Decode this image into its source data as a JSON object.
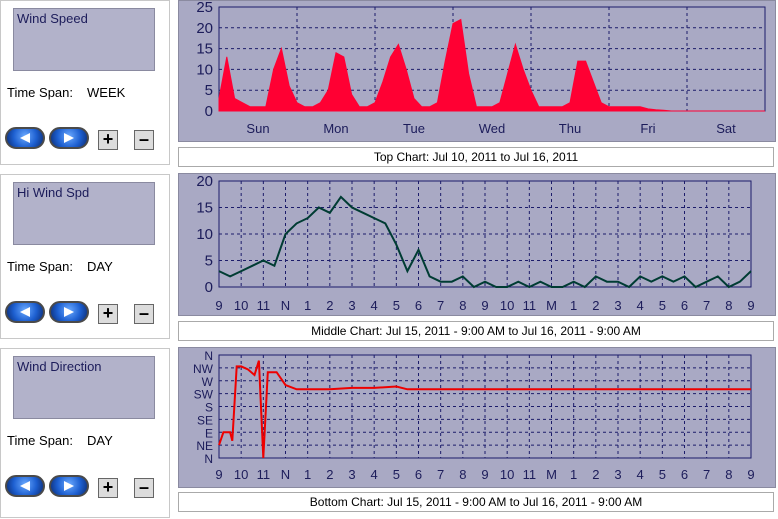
{
  "panels": [
    {
      "selector": "Wind Speed",
      "span_label": "Time Span:",
      "span_value": "WEEK"
    },
    {
      "selector": "Hi Wind Spd",
      "span_label": "Time Span:",
      "span_value": "DAY"
    },
    {
      "selector": "Wind Direction",
      "span_label": "Time Span:",
      "span_value": "DAY"
    }
  ],
  "buttons": {
    "plus": "+",
    "minus": "–"
  },
  "icons": {
    "prev": "prev-arrow-icon",
    "next": "next-arrow-icon"
  },
  "colors": {
    "plot_bg": "#a9a9c4",
    "grid": "#1c1c6a",
    "top_series": "#ff0033",
    "mid_series": "#003c33",
    "bottom_series": "#ee0000"
  },
  "captions": {
    "top": "Top Chart:  Jul 10, 2011  to  Jul 16, 2011",
    "middle": "Middle Chart:  Jul 15, 2011 - 9:00 AM  to  Jul 16, 2011 - 9:00 AM",
    "bottom": "Bottom Chart:  Jul 15, 2011 - 9:00 AM  to  Jul 16, 2011 - 9:00 AM"
  },
  "chart_data": [
    {
      "type": "area",
      "title": "",
      "ylim": [
        0,
        25
      ],
      "yticks": [
        "0",
        "5",
        "10",
        "15",
        "20",
        "25"
      ],
      "xticks": [
        "Sun",
        "Mon",
        "Tue",
        "Wed",
        "Thu",
        "Fri",
        "Sat"
      ],
      "xlim": [
        0,
        7
      ],
      "grid": true,
      "series": [
        {
          "x": [
            0,
            0.1,
            0.2,
            0.3,
            0.4,
            0.5,
            0.6,
            0.7,
            0.8,
            0.9,
            1.0,
            1.1,
            1.2,
            1.3,
            1.4,
            1.5,
            1.6,
            1.7,
            1.8,
            1.9,
            2.0,
            2.1,
            2.2,
            2.3,
            2.4,
            2.5,
            2.6,
            2.7,
            2.8,
            2.9,
            3.0,
            3.1,
            3.2,
            3.3,
            3.4,
            3.5,
            3.6,
            3.7,
            3.8,
            3.9,
            4.0,
            4.1,
            4.2,
            4.3,
            4.4,
            4.5,
            4.6,
            4.7,
            4.8,
            4.9,
            5.0,
            5.1,
            5.2,
            5.3,
            5.4,
            5.5,
            5.6,
            5.7,
            5.8,
            5.9,
            6.0,
            6.1,
            6.2,
            6.3,
            6.4,
            6.5,
            6.6,
            6.7,
            6.8,
            6.9,
            7.0
          ],
          "values": [
            3,
            13,
            3,
            2,
            1,
            1,
            1,
            10,
            15,
            6,
            2,
            1,
            1,
            2,
            5,
            14,
            13,
            4,
            1,
            1,
            2,
            7,
            13,
            16,
            10,
            3,
            1,
            1,
            2,
            12,
            21,
            22,
            9,
            1,
            1,
            1,
            2,
            9,
            16,
            10,
            5,
            1,
            1,
            1,
            1,
            2,
            12,
            12,
            7,
            2,
            1,
            1,
            1,
            1,
            1,
            0.5,
            0.3,
            0.2,
            0,
            0,
            0,
            0,
            0,
            0,
            0,
            0,
            0,
            0,
            0,
            0,
            0
          ]
        }
      ]
    },
    {
      "type": "line",
      "title": "",
      "ylim": [
        0,
        20
      ],
      "yticks": [
        "0",
        "5",
        "10",
        "15",
        "20"
      ],
      "xticks": [
        "9",
        "10",
        "11",
        "N",
        "1",
        "2",
        "3",
        "4",
        "5",
        "6",
        "7",
        "8",
        "9",
        "10",
        "11",
        "M",
        "1",
        "2",
        "3",
        "4",
        "5",
        "6",
        "7",
        "8",
        "9"
      ],
      "xlim": [
        0,
        24
      ],
      "grid": true,
      "series": [
        {
          "x": [
            0,
            0.5,
            1,
            1.5,
            2,
            2.5,
            3,
            3.5,
            4,
            4.5,
            5,
            5.5,
            6,
            6.5,
            7,
            7.5,
            8,
            8.5,
            9,
            9.5,
            10,
            10.5,
            11,
            11.5,
            12,
            12.5,
            13,
            13.5,
            14,
            14.5,
            15,
            15.5,
            16,
            16.5,
            17,
            17.5,
            18,
            18.5,
            19,
            19.5,
            20,
            20.5,
            21,
            21.5,
            22,
            22.5,
            23,
            23.5,
            24
          ],
          "values": [
            3,
            2,
            3,
            4,
            5,
            4,
            10,
            12,
            13,
            15,
            14,
            17,
            15,
            14,
            13,
            12,
            8,
            3,
            7,
            2,
            1,
            1,
            2,
            0,
            1,
            0,
            0,
            1,
            0,
            1,
            0,
            0,
            1,
            0,
            2,
            1,
            1,
            0,
            2,
            1,
            2,
            1,
            2,
            0,
            1,
            2,
            0,
            1,
            3
          ]
        }
      ]
    },
    {
      "type": "line",
      "title": "",
      "yticks": [
        "N",
        "NE",
        "E",
        "SE",
        "S",
        "SW",
        "W",
        "NW",
        "N"
      ],
      "ylim": [
        0,
        360
      ],
      "xticks": [
        "9",
        "10",
        "11",
        "N",
        "1",
        "2",
        "3",
        "4",
        "5",
        "6",
        "7",
        "8",
        "9",
        "10",
        "11",
        "M",
        "1",
        "2",
        "3",
        "4",
        "5",
        "6",
        "7",
        "8",
        "9"
      ],
      "xlim": [
        0,
        24
      ],
      "grid": true,
      "series": [
        {
          "x": [
            0,
            0.2,
            0.5,
            0.6,
            0.8,
            1.0,
            1.3,
            1.6,
            1.8,
            2.0,
            2.2,
            2.6,
            3,
            3.5,
            4,
            5,
            6,
            7,
            8,
            8.5,
            10,
            12,
            14,
            16,
            18,
            20,
            22,
            24
          ],
          "values": [
            45,
            90,
            90,
            60,
            320,
            320,
            310,
            290,
            340,
            0,
            300,
            300,
            255,
            240,
            240,
            240,
            245,
            245,
            250,
            240,
            240,
            240,
            240,
            240,
            240,
            240,
            240,
            240
          ]
        }
      ]
    }
  ]
}
